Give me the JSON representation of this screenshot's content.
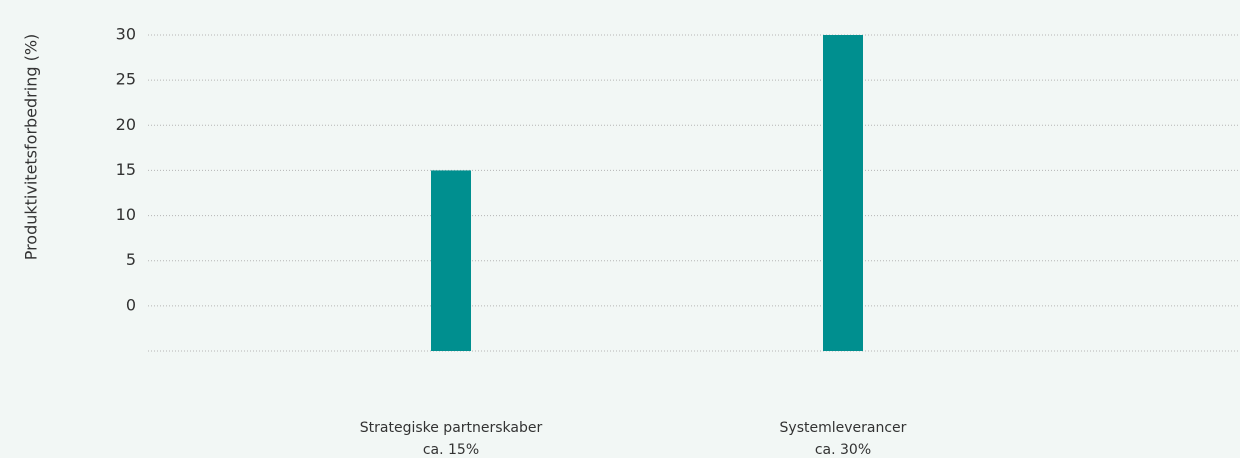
{
  "chart_data": {
    "type": "bar",
    "y_label": "Produktivitetsforbedring (%)",
    "categories": [
      "Strategiske partnerskaber",
      "Systemleverancer"
    ],
    "values": [
      15,
      30
    ],
    "value_labels": [
      "ca. 15%",
      "ca. 30%"
    ],
    "color": "#008f8f",
    "ylim": [
      -5,
      30
    ],
    "yticks": [
      0,
      5,
      10,
      15,
      20,
      25,
      30
    ],
    "grid": true
  }
}
